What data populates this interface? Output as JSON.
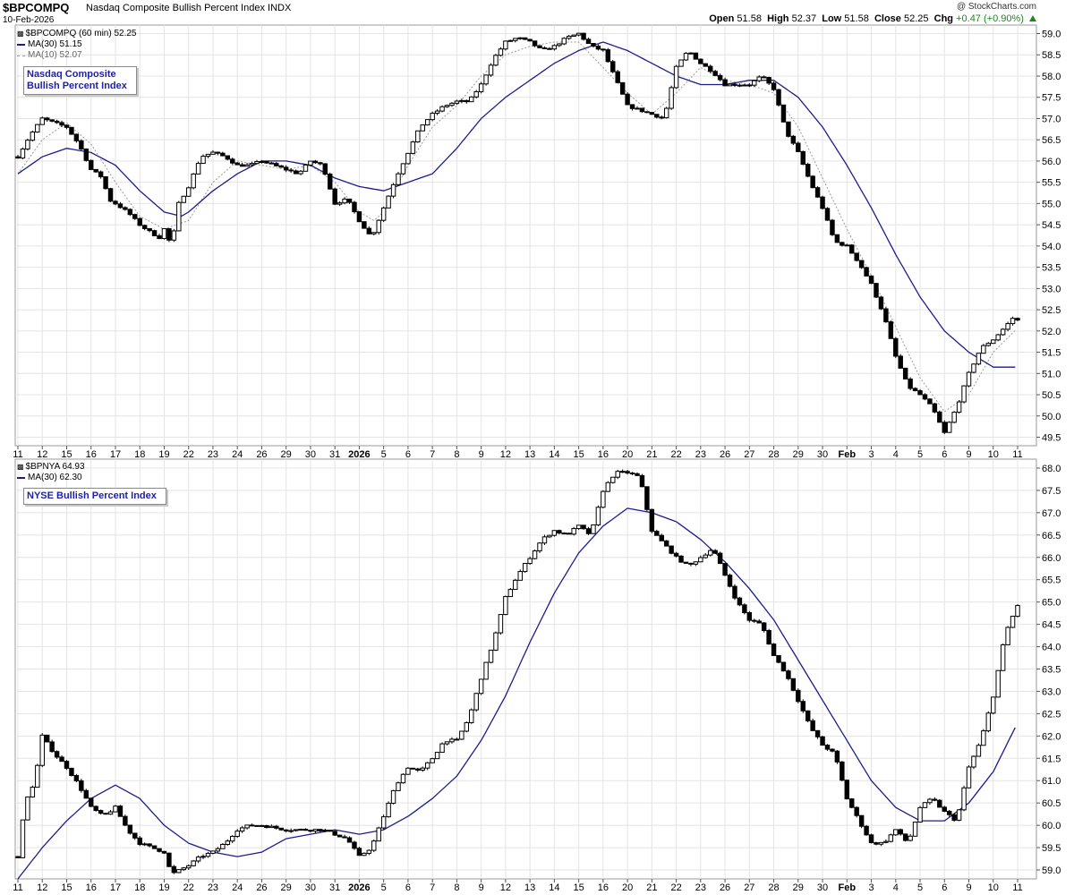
{
  "header": {
    "symbol": "$BPCOMPQ",
    "name": "Nasdaq Composite Bullish Percent Index",
    "exchange": "INDX",
    "date": "10-Feb-2026",
    "credit": "@ StockCharts.com",
    "open_label": "Open",
    "open": "51.58",
    "high_label": "High",
    "high": "52.37",
    "low_label": "Low",
    "low": "51.58",
    "close_label": "Close",
    "close": "52.25",
    "chg_label": "Chg",
    "chg": "+0.47 (+0.90%)",
    "chg_color": "#1a8a1a"
  },
  "colors": {
    "price": "#000000",
    "ma30": "#1c1c8c",
    "ma10": "#9a9a9a",
    "box_text": "#1f1fa8",
    "grid": "#e4e4e4"
  },
  "chart_data": [
    {
      "type": "line",
      "legend": [
        "$BPCOMPQ (60 min) 52.25",
        "MA(30) 51.15",
        "MA(10) 52.07"
      ],
      "label_box": [
        "Nasdaq Composite",
        "Bullish Percent Index"
      ],
      "y_ticks": [
        "49.5",
        "50.0",
        "50.5",
        "51.0",
        "51.5",
        "52.0",
        "52.5",
        "53.0",
        "53.5",
        "54.0",
        "54.5",
        "55.0",
        "55.5",
        "56.0",
        "56.5",
        "57.0",
        "57.5",
        "58.0",
        "58.5",
        "59.0"
      ],
      "ylim": [
        49.3,
        59.2
      ],
      "x_ticks": [
        "11",
        "12",
        "15",
        "16",
        "17",
        "18",
        "19",
        "22",
        "23",
        "24",
        "26",
        "29",
        "30",
        "31",
        "2026",
        "5",
        "6",
        "7",
        "8",
        "9",
        "12",
        "13",
        "14",
        "15",
        "16",
        "20",
        "21",
        "22",
        "23",
        "26",
        "27",
        "28",
        "29",
        "30",
        "Feb",
        "3",
        "4",
        "5",
        "6",
        "9",
        "10",
        "11"
      ],
      "anchors": [
        [
          0,
          56.1
        ],
        [
          0.5,
          56.6
        ],
        [
          1,
          57.0
        ],
        [
          1.5,
          56.9
        ],
        [
          2,
          56.8
        ],
        [
          2.5,
          56.4
        ],
        [
          3,
          55.8
        ],
        [
          3.5,
          55.6
        ],
        [
          3.7,
          55.1
        ],
        [
          4,
          55.0
        ],
        [
          4.5,
          54.8
        ],
        [
          5,
          54.5
        ],
        [
          5.5,
          54.3
        ],
        [
          5.8,
          54.2
        ],
        [
          6,
          54.4
        ],
        [
          6.3,
          54.0
        ],
        [
          6.6,
          55.0
        ],
        [
          7,
          55.4
        ],
        [
          7.5,
          56.1
        ],
        [
          8,
          56.2
        ],
        [
          8.5,
          56.1
        ],
        [
          9,
          55.9
        ],
        [
          9.5,
          55.9
        ],
        [
          10,
          56.0
        ],
        [
          11,
          55.8
        ],
        [
          11.5,
          55.7
        ],
        [
          12,
          56.0
        ],
        [
          12.5,
          55.9
        ],
        [
          13,
          55.0
        ],
        [
          13.5,
          55.1
        ],
        [
          14,
          54.6
        ],
        [
          14.5,
          54.2
        ],
        [
          15,
          54.9
        ],
        [
          15.5,
          55.6
        ],
        [
          16,
          56.2
        ],
        [
          16.5,
          56.8
        ],
        [
          17,
          57.1
        ],
        [
          17.5,
          57.3
        ],
        [
          18,
          57.4
        ],
        [
          18.5,
          57.4
        ],
        [
          19,
          57.8
        ],
        [
          19.5,
          58.4
        ],
        [
          20,
          58.8
        ],
        [
          20.5,
          58.9
        ],
        [
          21,
          58.8
        ],
        [
          21.5,
          58.6
        ],
        [
          22,
          58.7
        ],
        [
          22.5,
          58.9
        ],
        [
          23,
          59.0
        ],
        [
          23.5,
          58.7
        ],
        [
          24,
          58.6
        ],
        [
          25,
          57.3
        ],
        [
          25.5,
          57.2
        ],
        [
          26,
          57.1
        ],
        [
          26.5,
          57.0
        ],
        [
          27,
          58.2
        ],
        [
          27.5,
          58.6
        ],
        [
          28,
          58.3
        ],
        [
          28.5,
          58.1
        ],
        [
          29,
          57.8
        ],
        [
          29.5,
          57.8
        ],
        [
          30,
          57.8
        ],
        [
          30.5,
          58.0
        ],
        [
          31,
          57.7
        ],
        [
          31.5,
          56.7
        ],
        [
          32,
          56.2
        ],
        [
          32.5,
          55.5
        ],
        [
          33,
          54.9
        ],
        [
          33.5,
          54.1
        ],
        [
          34,
          54.0
        ],
        [
          34.5,
          53.6
        ],
        [
          35,
          53.1
        ],
        [
          35.5,
          52.4
        ],
        [
          36,
          51.4
        ],
        [
          36.5,
          50.7
        ],
        [
          37,
          50.5
        ],
        [
          37.5,
          50.2
        ],
        [
          38,
          49.6
        ],
        [
          38.5,
          50.2
        ],
        [
          39,
          51.0
        ],
        [
          39.5,
          51.6
        ],
        [
          40,
          51.8
        ],
        [
          40.5,
          52.1
        ],
        [
          40.8,
          52.3
        ],
        [
          41,
          52.25
        ]
      ],
      "ma30_anchors": [
        [
          0,
          55.7
        ],
        [
          1,
          56.1
        ],
        [
          2,
          56.3
        ],
        [
          3,
          56.2
        ],
        [
          4,
          55.9
        ],
        [
          5,
          55.3
        ],
        [
          6,
          54.8
        ],
        [
          6.7,
          54.7
        ],
        [
          7,
          54.8
        ],
        [
          8,
          55.3
        ],
        [
          9,
          55.7
        ],
        [
          10,
          56.0
        ],
        [
          11,
          56.0
        ],
        [
          12,
          55.9
        ],
        [
          13,
          55.6
        ],
        [
          14,
          55.4
        ],
        [
          15,
          55.3
        ],
        [
          16,
          55.5
        ],
        [
          17,
          55.7
        ],
        [
          18,
          56.3
        ],
        [
          19,
          57.0
        ],
        [
          20,
          57.5
        ],
        [
          21,
          57.9
        ],
        [
          22,
          58.3
        ],
        [
          23,
          58.6
        ],
        [
          24,
          58.8
        ],
        [
          25,
          58.6
        ],
        [
          26,
          58.3
        ],
        [
          27,
          58.0
        ],
        [
          28,
          57.8
        ],
        [
          29,
          57.8
        ],
        [
          30,
          57.9
        ],
        [
          31,
          57.9
        ],
        [
          32,
          57.5
        ],
        [
          33,
          56.8
        ],
        [
          34,
          55.9
        ],
        [
          35,
          54.9
        ],
        [
          36,
          53.8
        ],
        [
          37,
          52.8
        ],
        [
          38,
          52.0
        ],
        [
          39,
          51.5
        ],
        [
          40,
          51.15
        ],
        [
          41,
          51.15
        ]
      ],
      "ma10_anchors": [
        [
          0,
          55.7
        ],
        [
          1,
          56.5
        ],
        [
          2,
          56.9
        ],
        [
          3,
          56.4
        ],
        [
          4,
          55.5
        ],
        [
          5,
          54.7
        ],
        [
          6,
          54.4
        ],
        [
          7,
          54.6
        ],
        [
          8,
          55.5
        ],
        [
          9,
          56.0
        ],
        [
          10,
          55.9
        ],
        [
          11,
          55.8
        ],
        [
          12,
          55.9
        ],
        [
          13,
          55.5
        ],
        [
          14,
          54.8
        ],
        [
          14.6,
          54.6
        ],
        [
          15,
          54.8
        ],
        [
          16,
          55.9
        ],
        [
          17,
          56.8
        ],
        [
          18,
          57.3
        ],
        [
          19,
          58.0
        ],
        [
          20,
          58.5
        ],
        [
          21,
          58.7
        ],
        [
          22,
          58.8
        ],
        [
          23,
          58.8
        ],
        [
          24,
          58.2
        ],
        [
          25,
          57.6
        ],
        [
          26,
          57.1
        ],
        [
          27,
          57.6
        ],
        [
          28,
          58.2
        ],
        [
          29,
          57.9
        ],
        [
          30,
          57.8
        ],
        [
          31,
          57.6
        ],
        [
          32,
          56.8
        ],
        [
          33,
          55.6
        ],
        [
          34,
          54.4
        ],
        [
          35,
          53.3
        ],
        [
          36,
          52.1
        ],
        [
          37,
          50.9
        ],
        [
          38,
          50.1
        ],
        [
          39,
          50.5
        ],
        [
          40,
          51.5
        ],
        [
          41,
          52.07
        ]
      ]
    },
    {
      "type": "line",
      "legend": [
        "$BPNYA 64.93",
        "MA(30) 62.30"
      ],
      "label_box": [
        "NYSE Bullish Percent Index"
      ],
      "y_ticks": [
        "59.0",
        "59.5",
        "60.0",
        "60.5",
        "61.0",
        "61.5",
        "62.0",
        "62.5",
        "63.0",
        "63.5",
        "64.0",
        "64.5",
        "65.0",
        "65.5",
        "66.0",
        "66.5",
        "67.0",
        "67.5",
        "68.0"
      ],
      "ylim": [
        58.8,
        68.2
      ],
      "x_ticks": [
        "11",
        "12",
        "15",
        "16",
        "17",
        "18",
        "19",
        "22",
        "23",
        "24",
        "26",
        "29",
        "30",
        "31",
        "2026",
        "5",
        "6",
        "7",
        "8",
        "9",
        "12",
        "13",
        "14",
        "15",
        "16",
        "20",
        "21",
        "22",
        "23",
        "26",
        "27",
        "28",
        "29",
        "30",
        "Feb",
        "3",
        "4",
        "5",
        "6",
        "9",
        "10",
        "11"
      ],
      "anchors": [
        [
          0,
          59.3
        ],
        [
          0.3,
          60.5
        ],
        [
          0.7,
          61.0
        ],
        [
          1,
          62.0
        ],
        [
          1.5,
          61.6
        ],
        [
          2,
          61.3
        ],
        [
          2.5,
          60.9
        ],
        [
          3,
          60.4
        ],
        [
          3.5,
          60.2
        ],
        [
          4,
          60.4
        ],
        [
          4.5,
          59.9
        ],
        [
          5,
          59.6
        ],
        [
          5.5,
          59.5
        ],
        [
          6,
          59.4
        ],
        [
          6.3,
          58.9
        ],
        [
          7,
          59.1
        ],
        [
          7.5,
          59.3
        ],
        [
          8,
          59.4
        ],
        [
          8.5,
          59.6
        ],
        [
          9,
          59.9
        ],
        [
          9.5,
          60.0
        ],
        [
          10,
          60.0
        ],
        [
          11,
          59.9
        ],
        [
          12,
          59.9
        ],
        [
          12.5,
          59.9
        ],
        [
          13,
          59.8
        ],
        [
          13.5,
          59.7
        ],
        [
          14,
          59.3
        ],
        [
          14.5,
          59.5
        ],
        [
          15,
          60.2
        ],
        [
          15.5,
          60.9
        ],
        [
          16,
          61.3
        ],
        [
          16.5,
          61.2
        ],
        [
          17,
          61.5
        ],
        [
          17.5,
          61.9
        ],
        [
          18,
          61.9
        ],
        [
          18.5,
          62.4
        ],
        [
          19,
          63.3
        ],
        [
          19.5,
          64.1
        ],
        [
          20,
          65.1
        ],
        [
          20.5,
          65.6
        ],
        [
          21,
          66.0
        ],
        [
          21.5,
          66.4
        ],
        [
          22,
          66.6
        ],
        [
          22.5,
          66.5
        ],
        [
          23,
          66.7
        ],
        [
          23.5,
          66.5
        ],
        [
          24,
          67.5
        ],
        [
          24.5,
          67.9
        ],
        [
          25,
          67.9
        ],
        [
          25.5,
          67.8
        ],
        [
          26,
          66.6
        ],
        [
          26.5,
          66.3
        ],
        [
          27,
          66.0
        ],
        [
          27.5,
          65.8
        ],
        [
          28,
          66.0
        ],
        [
          28.5,
          66.2
        ],
        [
          29,
          65.6
        ],
        [
          29.5,
          65.0
        ],
        [
          30,
          64.6
        ],
        [
          30.5,
          64.5
        ],
        [
          31,
          63.8
        ],
        [
          31.5,
          63.4
        ],
        [
          32,
          62.8
        ],
        [
          32.5,
          62.2
        ],
        [
          33,
          61.8
        ],
        [
          33.5,
          61.6
        ],
        [
          34,
          60.6
        ],
        [
          34.5,
          60.1
        ],
        [
          35,
          59.6
        ],
        [
          35.5,
          59.6
        ],
        [
          36,
          59.9
        ],
        [
          36.5,
          59.6
        ],
        [
          37,
          60.4
        ],
        [
          37.5,
          60.6
        ],
        [
          38,
          60.3
        ],
        [
          38.5,
          60.1
        ],
        [
          39,
          61.3
        ],
        [
          39.5,
          61.9
        ],
        [
          40,
          62.9
        ],
        [
          40.5,
          64.3
        ],
        [
          41,
          64.93
        ]
      ],
      "ma30_anchors": [
        [
          0,
          58.8
        ],
        [
          1,
          59.5
        ],
        [
          2,
          60.1
        ],
        [
          3,
          60.6
        ],
        [
          4,
          60.9
        ],
        [
          5,
          60.6
        ],
        [
          6,
          60.0
        ],
        [
          7,
          59.6
        ],
        [
          8,
          59.4
        ],
        [
          9,
          59.3
        ],
        [
          10,
          59.4
        ],
        [
          11,
          59.7
        ],
        [
          12,
          59.8
        ],
        [
          13,
          59.9
        ],
        [
          14,
          59.8
        ],
        [
          15,
          59.9
        ],
        [
          16,
          60.2
        ],
        [
          17,
          60.6
        ],
        [
          18,
          61.1
        ],
        [
          19,
          61.9
        ],
        [
          20,
          62.9
        ],
        [
          21,
          64.1
        ],
        [
          22,
          65.2
        ],
        [
          23,
          66.1
        ],
        [
          24,
          66.7
        ],
        [
          25,
          67.1
        ],
        [
          26,
          67.0
        ],
        [
          27,
          66.8
        ],
        [
          28,
          66.4
        ],
        [
          29,
          65.9
        ],
        [
          30,
          65.3
        ],
        [
          31,
          64.6
        ],
        [
          32,
          63.7
        ],
        [
          33,
          62.8
        ],
        [
          34,
          61.9
        ],
        [
          35,
          61.0
        ],
        [
          36,
          60.4
        ],
        [
          37,
          60.1
        ],
        [
          38,
          60.1
        ],
        [
          39,
          60.5
        ],
        [
          40,
          61.2
        ],
        [
          41,
          62.3
        ]
      ]
    }
  ]
}
